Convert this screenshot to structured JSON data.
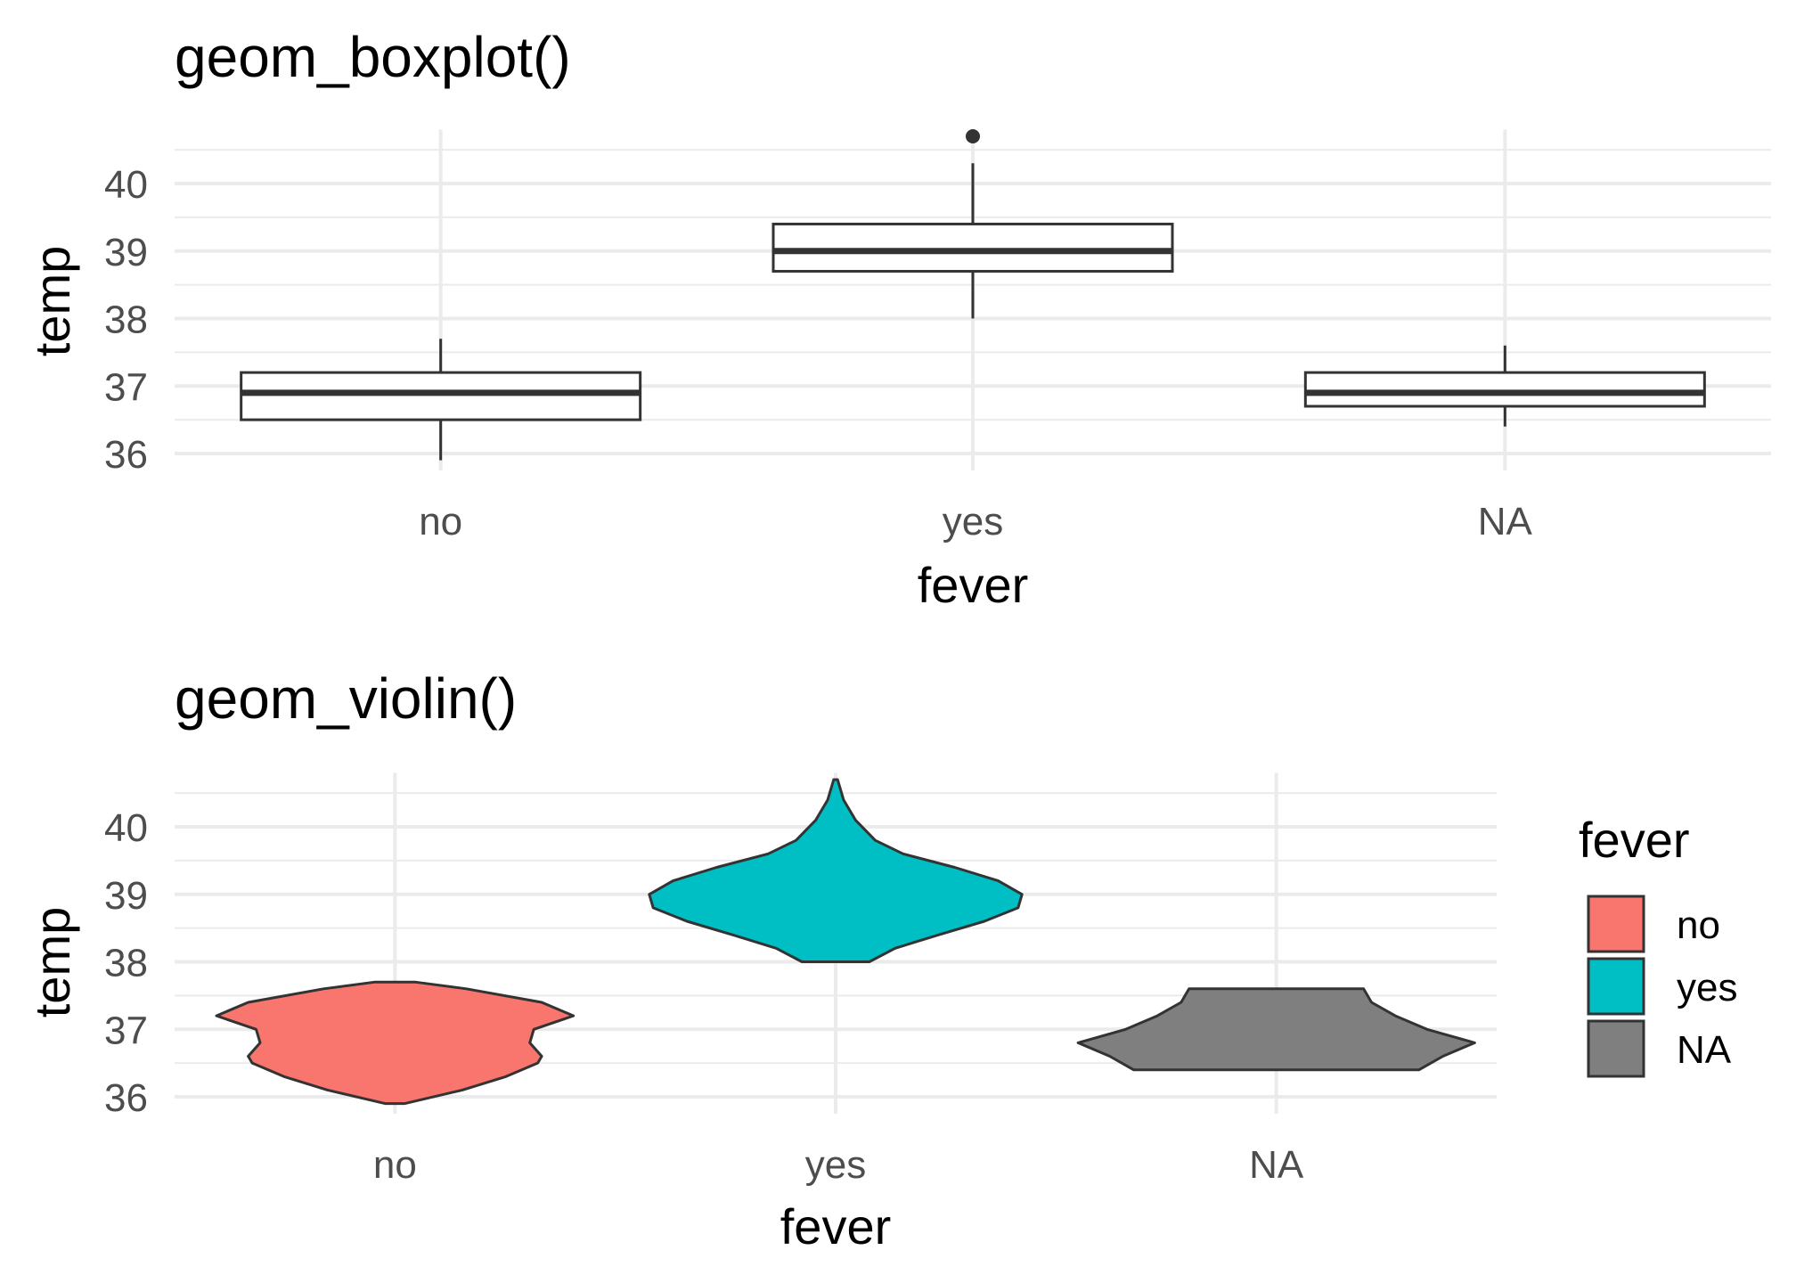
{
  "chart_data": [
    {
      "type": "boxplot",
      "title": "geom_boxplot()",
      "xlabel": "fever",
      "ylabel": "temp",
      "categories": [
        "no",
        "yes",
        "NA"
      ],
      "yticks": [
        "36",
        "37",
        "38",
        "39",
        "40"
      ],
      "ylim": [
        35.75,
        40.8
      ],
      "grid": true,
      "boxes": [
        {
          "category": "no",
          "min": 35.9,
          "q1": 36.5,
          "median": 36.9,
          "q3": 37.2,
          "max": 37.7,
          "outliers": []
        },
        {
          "category": "yes",
          "min": 38.0,
          "q1": 38.7,
          "median": 39.0,
          "q3": 39.4,
          "max": 40.3,
          "outliers": [
            40.7
          ]
        },
        {
          "category": "NA",
          "min": 36.4,
          "q1": 36.7,
          "median": 36.9,
          "q3": 37.2,
          "max": 37.6,
          "outliers": []
        }
      ]
    },
    {
      "type": "violin",
      "title": "geom_violin()",
      "xlabel": "fever",
      "ylabel": "temp",
      "categories": [
        "no",
        "yes",
        "NA"
      ],
      "yticks": [
        "36",
        "37",
        "38",
        "39",
        "40"
      ],
      "ylim": [
        35.75,
        40.8
      ],
      "grid": true,
      "legend": {
        "title": "fever",
        "position": "right",
        "items": [
          {
            "label": "no",
            "color": "#F8766D"
          },
          {
            "label": "yes",
            "color": "#00BFC4"
          },
          {
            "label": "NA",
            "color": "#7F7F7F"
          }
        ]
      },
      "violins": [
        {
          "category": "no",
          "color": "#F8766D",
          "profile": [
            [
              35.9,
              0.05
            ],
            [
              36.1,
              0.34
            ],
            [
              36.3,
              0.56
            ],
            [
              36.5,
              0.72
            ],
            [
              36.6,
              0.74
            ],
            [
              36.8,
              0.68
            ],
            [
              37.0,
              0.7
            ],
            [
              37.2,
              0.9
            ],
            [
              37.4,
              0.74
            ],
            [
              37.6,
              0.36
            ],
            [
              37.7,
              0.1
            ]
          ]
        },
        {
          "category": "yes",
          "color": "#00BFC4",
          "profile": [
            [
              38.0,
              0.17
            ],
            [
              38.2,
              0.3
            ],
            [
              38.4,
              0.52
            ],
            [
              38.6,
              0.75
            ],
            [
              38.8,
              0.92
            ],
            [
              39.0,
              0.94
            ],
            [
              39.2,
              0.82
            ],
            [
              39.4,
              0.6
            ],
            [
              39.6,
              0.34
            ],
            [
              39.8,
              0.2
            ],
            [
              40.1,
              0.1
            ],
            [
              40.4,
              0.04
            ],
            [
              40.7,
              0.01
            ]
          ]
        },
        {
          "category": "NA",
          "color": "#7F7F7F",
          "profile": [
            [
              36.4,
              0.72
            ],
            [
              36.6,
              0.84
            ],
            [
              36.8,
              1.0
            ],
            [
              37.0,
              0.76
            ],
            [
              37.2,
              0.6
            ],
            [
              37.4,
              0.48
            ],
            [
              37.6,
              0.44
            ]
          ]
        }
      ]
    }
  ]
}
